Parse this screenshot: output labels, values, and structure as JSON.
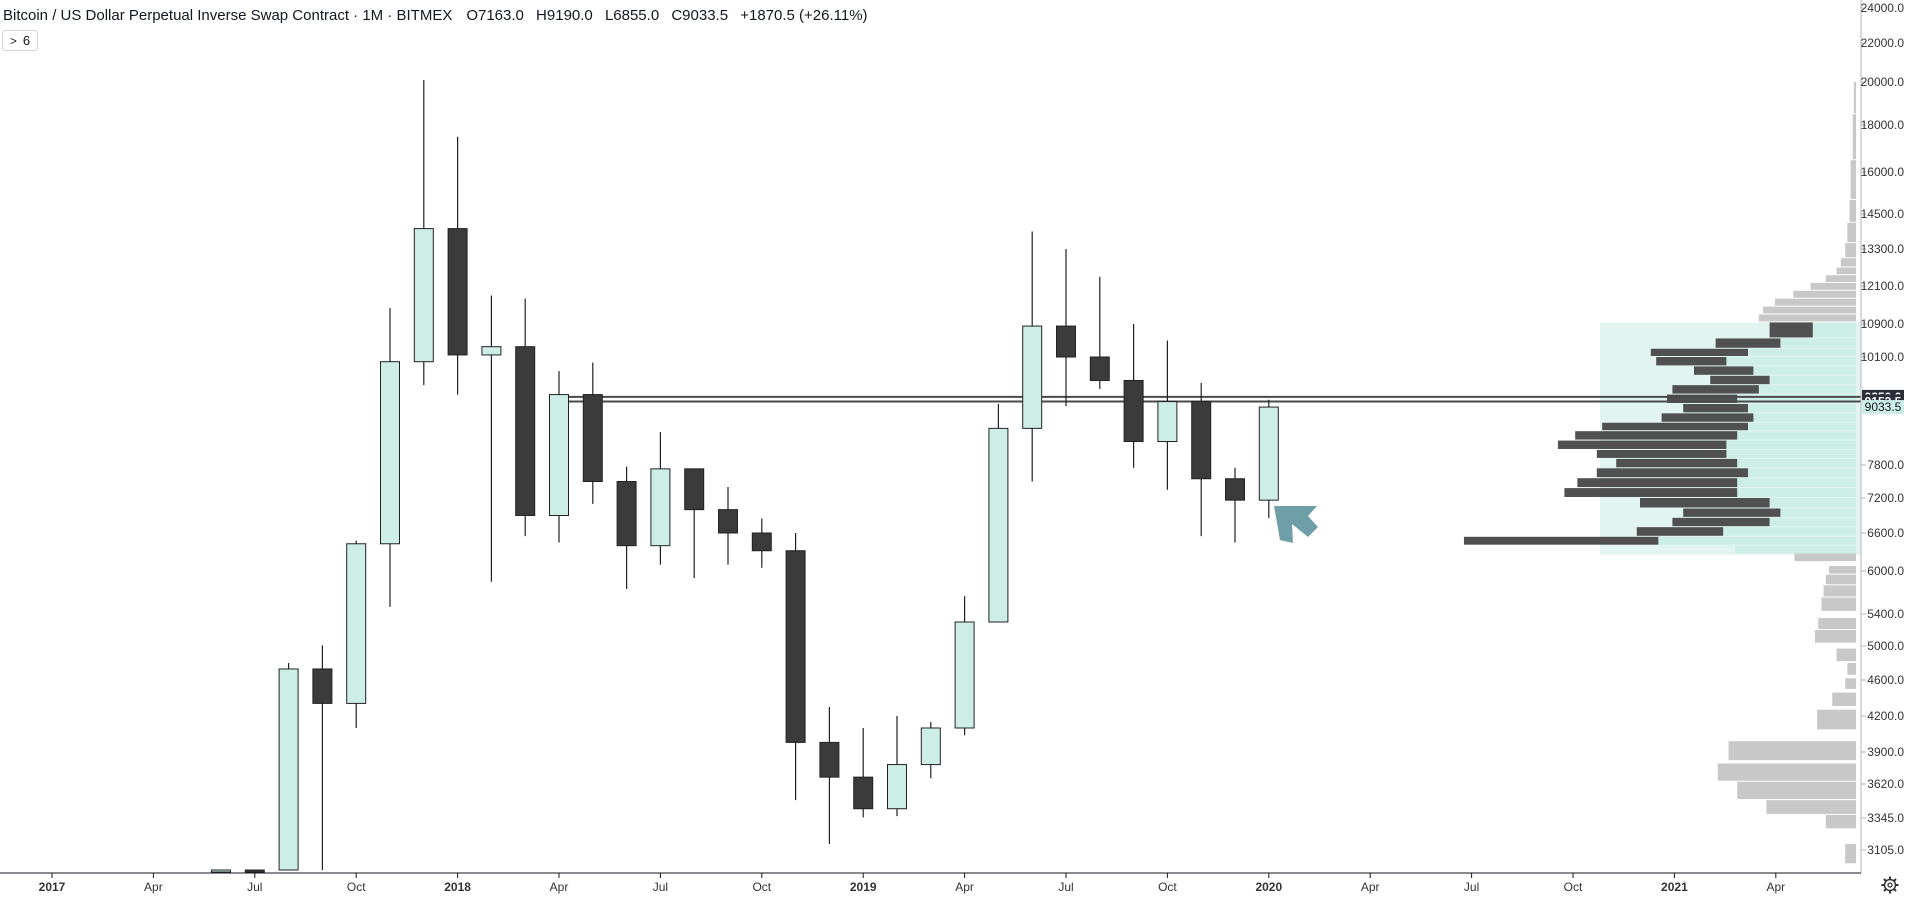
{
  "header": {
    "title": "Bitcoin / US Dollar Perpetual Inverse Swap Contract · 1M · BITMEX",
    "open": "O7163.0",
    "high": "H9190.0",
    "low": "L6855.0",
    "close": "C9033.5",
    "change": "+1870.5 (+26.11%)"
  },
  "indicator_toggle": {
    "chevron": ">",
    "count": "6"
  },
  "colors": {
    "up_fill": "#cdeee6",
    "down_fill": "#3b3b3b",
    "outline": "#222222",
    "vp_dark": "#505050",
    "vp_light": "#c8c8c8",
    "vp_area": "#e2f4f0",
    "arrow": "#6e9fa8"
  },
  "chart_data": {
    "type": "candlestick",
    "timeframe": "1M",
    "y_axis_labels": [
      "24000.0",
      "22000.0",
      "20000.0",
      "18000.0",
      "16000.0",
      "14500.0",
      "13300.0",
      "12100.0",
      "10900.0",
      "10100.0",
      "7800.0",
      "7200.0",
      "6600.0",
      "6000.0",
      "5400.0",
      "5000.0",
      "4600.0",
      "4200.0",
      "3900.0",
      "3620.0",
      "3345.0",
      "3105.0"
    ],
    "price_labels": [
      {
        "text": "9250.0",
        "value": 9250,
        "style": "dark"
      },
      {
        "text": "9153.5",
        "value": 9153.5,
        "style": "dark"
      },
      {
        "text": "9033.5",
        "value": 9033.5,
        "style": "light"
      }
    ],
    "x_axis_labels": [
      {
        "text": "2017",
        "index": 0,
        "bold": true
      },
      {
        "text": "Apr",
        "index": 3,
        "bold": false
      },
      {
        "text": "Jul",
        "index": 6,
        "bold": false
      },
      {
        "text": "Oct",
        "index": 9,
        "bold": false
      },
      {
        "text": "2018",
        "index": 12,
        "bold": true
      },
      {
        "text": "Apr",
        "index": 15,
        "bold": false
      },
      {
        "text": "Jul",
        "index": 18,
        "bold": false
      },
      {
        "text": "Oct",
        "index": 21,
        "bold": false
      },
      {
        "text": "2019",
        "index": 24,
        "bold": true
      },
      {
        "text": "Apr",
        "index": 27,
        "bold": false
      },
      {
        "text": "Jul",
        "index": 30,
        "bold": false
      },
      {
        "text": "Oct",
        "index": 33,
        "bold": false
      },
      {
        "text": "2020",
        "index": 36,
        "bold": true
      },
      {
        "text": "Apr",
        "index": 39,
        "bold": false
      },
      {
        "text": "Jul",
        "index": 42,
        "bold": false
      },
      {
        "text": "Oct",
        "index": 45,
        "bold": false
      },
      {
        "text": "2021",
        "index": 48,
        "bold": true
      },
      {
        "text": "Apr",
        "index": 51,
        "bold": false
      }
    ],
    "candles": [
      {
        "date": "2017-06",
        "open": 2800,
        "high": 3000,
        "low": 2700,
        "close": 2900
      },
      {
        "date": "2017-07",
        "open": 2900,
        "high": 2980,
        "low": 2700,
        "close": 2850
      },
      {
        "date": "2017-08",
        "open": 2850,
        "high": 4800,
        "low": 2700,
        "close": 4730
      },
      {
        "date": "2017-09",
        "open": 4730,
        "high": 5010,
        "low": 2980,
        "close": 4340
      },
      {
        "date": "2017-10",
        "open": 4340,
        "high": 6480,
        "low": 4100,
        "close": 6430
      },
      {
        "date": "2017-11",
        "open": 6430,
        "high": 11400,
        "low": 5500,
        "close": 10000
      },
      {
        "date": "2017-12",
        "open": 10000,
        "high": 20100,
        "low": 9500,
        "close": 14000
      },
      {
        "date": "2018-01",
        "open": 14000,
        "high": 17500,
        "low": 9300,
        "close": 10150
      },
      {
        "date": "2018-02",
        "open": 10150,
        "high": 11800,
        "low": 5850,
        "close": 10350
      },
      {
        "date": "2018-03",
        "open": 10350,
        "high": 11700,
        "low": 6550,
        "close": 6900
      },
      {
        "date": "2018-04",
        "open": 6900,
        "high": 9800,
        "low": 6450,
        "close": 9300
      },
      {
        "date": "2018-05",
        "open": 9300,
        "high": 9980,
        "low": 7100,
        "close": 7500
      },
      {
        "date": "2018-06",
        "open": 7500,
        "high": 7770,
        "low": 5750,
        "close": 6400
      },
      {
        "date": "2018-07",
        "open": 6400,
        "high": 8500,
        "low": 6100,
        "close": 7730
      },
      {
        "date": "2018-08",
        "open": 7730,
        "high": 7730,
        "low": 5900,
        "close": 7000
      },
      {
        "date": "2018-09",
        "open": 7000,
        "high": 7400,
        "low": 6100,
        "close": 6600
      },
      {
        "date": "2018-10",
        "open": 6600,
        "high": 6850,
        "low": 6050,
        "close": 6320
      },
      {
        "date": "2018-11",
        "open": 6320,
        "high": 6600,
        "low": 3490,
        "close": 3980
      },
      {
        "date": "2018-12",
        "open": 3980,
        "high": 4300,
        "low": 3150,
        "close": 3680
      },
      {
        "date": "2019-01",
        "open": 3680,
        "high": 4100,
        "low": 3350,
        "close": 3420
      },
      {
        "date": "2019-02",
        "open": 3420,
        "high": 4200,
        "low": 3360,
        "close": 3790
      },
      {
        "date": "2019-03",
        "open": 3790,
        "high": 4150,
        "low": 3670,
        "close": 4100
      },
      {
        "date": "2019-04",
        "open": 4100,
        "high": 5650,
        "low": 4040,
        "close": 5300
      },
      {
        "date": "2019-05",
        "open": 5300,
        "high": 9100,
        "low": 5300,
        "close": 8580
      },
      {
        "date": "2019-06",
        "open": 8580,
        "high": 13900,
        "low": 7500,
        "close": 10850
      },
      {
        "date": "2019-07",
        "open": 10850,
        "high": 13300,
        "low": 9050,
        "close": 10100
      },
      {
        "date": "2019-08",
        "open": 10100,
        "high": 12400,
        "low": 9420,
        "close": 9600
      },
      {
        "date": "2019-09",
        "open": 9600,
        "high": 10900,
        "low": 7750,
        "close": 8300
      },
      {
        "date": "2019-10",
        "open": 8300,
        "high": 10500,
        "low": 7350,
        "close": 9150
      },
      {
        "date": "2019-11",
        "open": 9150,
        "high": 9550,
        "low": 6550,
        "close": 7550
      },
      {
        "date": "2019-12",
        "open": 7550,
        "high": 7750,
        "low": 6450,
        "close": 7163
      },
      {
        "date": "2020-01",
        "open": 7163,
        "high": 9190,
        "low": 6855,
        "close": 9033.5
      }
    ],
    "horizontal_lines": [
      9250,
      9153.5
    ],
    "volume_profile": {
      "value_area": {
        "low": 6260,
        "high": 10950
      },
      "rows": [
        {
          "low": 3030,
          "high": 3150,
          "up": 0,
          "down": 10
        },
        {
          "low": 3260,
          "high": 3370,
          "up": 0,
          "down": 28
        },
        {
          "low": 3370,
          "high": 3490,
          "up": 0,
          "down": 83
        },
        {
          "low": 3490,
          "high": 3640,
          "up": 0,
          "down": 110
        },
        {
          "low": 3640,
          "high": 3800,
          "up": 0,
          "down": 128
        },
        {
          "low": 3820,
          "high": 3990,
          "up": 0,
          "down": 118
        },
        {
          "low": 4080,
          "high": 4270,
          "up": 0,
          "down": 36
        },
        {
          "low": 4300,
          "high": 4460,
          "up": 0,
          "down": 22
        },
        {
          "low": 4490,
          "high": 4620,
          "up": 0,
          "down": 10
        },
        {
          "low": 4650,
          "high": 4800,
          "up": 0,
          "down": 8
        },
        {
          "low": 4810,
          "high": 4970,
          "up": 0,
          "down": 18
        },
        {
          "low": 5030,
          "high": 5200,
          "up": 0,
          "down": 38
        },
        {
          "low": 5200,
          "high": 5350,
          "up": 0,
          "down": 35
        },
        {
          "low": 5430,
          "high": 5630,
          "up": 0,
          "down": 32
        },
        {
          "low": 5630,
          "high": 5800,
          "up": 0,
          "down": 30
        },
        {
          "low": 5800,
          "high": 5950,
          "up": 0,
          "down": 28
        },
        {
          "low": 5950,
          "high": 6080,
          "up": 0,
          "down": 25
        },
        {
          "low": 6140,
          "high": 6300,
          "up": 0,
          "down": 57
        },
        {
          "low": 6260,
          "high": 6400,
          "up": 112,
          "down": 0
        },
        {
          "low": 6400,
          "high": 6540,
          "up": 183,
          "down": 180
        },
        {
          "low": 6540,
          "high": 6700,
          "up": 123,
          "down": 80
        },
        {
          "low": 6700,
          "high": 6860,
          "up": 80,
          "down": 90
        },
        {
          "low": 6860,
          "high": 7020,
          "up": 70,
          "down": 90
        },
        {
          "low": 7020,
          "high": 7200,
          "up": 80,
          "down": 120
        },
        {
          "low": 7200,
          "high": 7380,
          "up": 110,
          "down": 160
        },
        {
          "low": 7380,
          "high": 7560,
          "up": 110,
          "down": 148
        },
        {
          "low": 7560,
          "high": 7740,
          "up": 100,
          "down": 140
        },
        {
          "low": 7740,
          "high": 7930,
          "up": 110,
          "down": 112
        },
        {
          "low": 7930,
          "high": 8120,
          "up": 120,
          "down": 120
        },
        {
          "low": 8120,
          "high": 8320,
          "up": 120,
          "down": 156
        },
        {
          "low": 8320,
          "high": 8520,
          "up": 110,
          "down": 150
        },
        {
          "low": 8520,
          "high": 8700,
          "up": 100,
          "down": 135
        },
        {
          "low": 8700,
          "high": 8900,
          "up": 95,
          "down": 85
        },
        {
          "low": 8900,
          "high": 9100,
          "up": 100,
          "down": 60
        },
        {
          "low": 9100,
          "high": 9300,
          "up": 110,
          "down": 65
        },
        {
          "low": 9300,
          "high": 9500,
          "up": 90,
          "down": 80
        },
        {
          "low": 9500,
          "high": 9700,
          "up": 80,
          "down": 55
        },
        {
          "low": 9700,
          "high": 9900,
          "up": 95,
          "down": 55
        },
        {
          "low": 9900,
          "high": 10100,
          "up": 120,
          "down": 65
        },
        {
          "low": 10100,
          "high": 10300,
          "up": 100,
          "down": 90
        },
        {
          "low": 10300,
          "high": 10550,
          "up": 70,
          "down": 60
        },
        {
          "low": 10550,
          "high": 10950,
          "up": 40,
          "down": 40
        },
        {
          "low": 10950,
          "high": 11200,
          "up": 0,
          "down": 90
        },
        {
          "low": 11200,
          "high": 11450,
          "up": 0,
          "down": 86
        },
        {
          "low": 11450,
          "high": 11700,
          "up": 0,
          "down": 75
        },
        {
          "low": 11700,
          "high": 11950,
          "up": 0,
          "down": 58
        },
        {
          "low": 11950,
          "high": 12200,
          "up": 0,
          "down": 42
        },
        {
          "low": 12200,
          "high": 12450,
          "up": 0,
          "down": 28
        },
        {
          "low": 12450,
          "high": 12700,
          "up": 0,
          "down": 18
        },
        {
          "low": 12700,
          "high": 13000,
          "up": 0,
          "down": 14
        },
        {
          "low": 13000,
          "high": 13500,
          "up": 0,
          "down": 10
        },
        {
          "low": 13500,
          "high": 14200,
          "up": 0,
          "down": 8
        },
        {
          "low": 14200,
          "high": 15000,
          "up": 0,
          "down": 6
        },
        {
          "low": 15000,
          "high": 16500,
          "up": 0,
          "down": 5
        },
        {
          "low": 16500,
          "high": 18500,
          "up": 0,
          "down": 3
        },
        {
          "low": 18500,
          "high": 20000,
          "up": 0,
          "down": 2
        }
      ]
    }
  }
}
